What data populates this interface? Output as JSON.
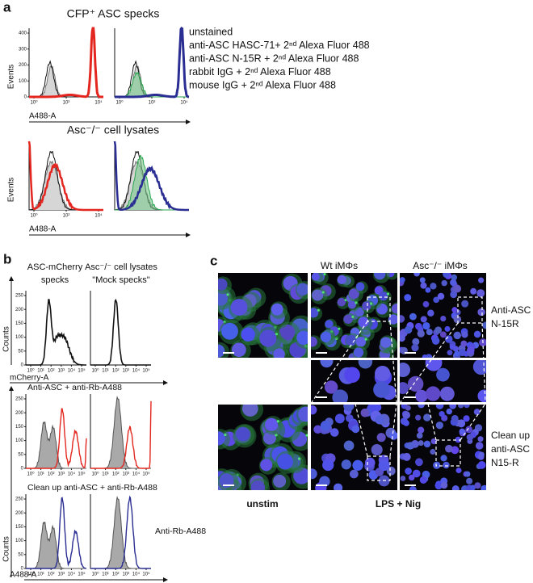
{
  "panel_a": {
    "label": "a",
    "title": "CFP⁺ ASC specks",
    "legend": [
      "unstained",
      "anti-ASC HASC-71+ 2ⁿᵈ Alexa Fluor 488",
      "anti-ASC N-15R + 2ⁿᵈ Alexa Fluor 488",
      "rabbit IgG + 2ⁿᵈ Alexa Fluor 488",
      "mouse IgG + 2ⁿᵈ Alexa Fluor 488"
    ],
    "y_axis_label": "Events",
    "x_axis_label": "A488-A",
    "y_ticks": [
      "0",
      "100",
      "200",
      "300",
      "400"
    ],
    "x_ticks": [
      "10⁰",
      "10²",
      "10⁴"
    ],
    "lysate_title": "Asc⁻/⁻ cell lysates"
  },
  "panel_b": {
    "label": "b",
    "col_headers": [
      [
        "ASC-mCherry",
        "specks"
      ],
      [
        "Asc⁻/⁻ cell lysates",
        "\"Mock specks\""
      ]
    ],
    "y_axis_label": "Counts",
    "x_axis_label_top": "mCherry-A",
    "x_axis_label_bottom": "A488-A",
    "row_labels": [
      "Anti-ASC + anti-Rb-A488",
      "Clean up anti-ASC + anti-Rb-A488"
    ],
    "annotation": "Anti-Rb-A488",
    "y_ticks": [
      "0",
      "50",
      "100",
      "150",
      "200",
      "250"
    ],
    "x_ticks": [
      "10⁰",
      "10¹",
      "10²",
      "10³",
      "10⁴",
      "10⁵"
    ]
  },
  "panel_c": {
    "label": "c",
    "col_headers": [
      "Wt iMΦs",
      "Asc⁻/⁻ iMΦs"
    ],
    "row_labels": [
      [
        "Anti-ASC",
        "N-15R"
      ],
      [
        "Clean up",
        "anti-ASC",
        "N15-R"
      ]
    ],
    "bottom_labels": [
      "unstim",
      "LPS + Nig"
    ]
  }
}
